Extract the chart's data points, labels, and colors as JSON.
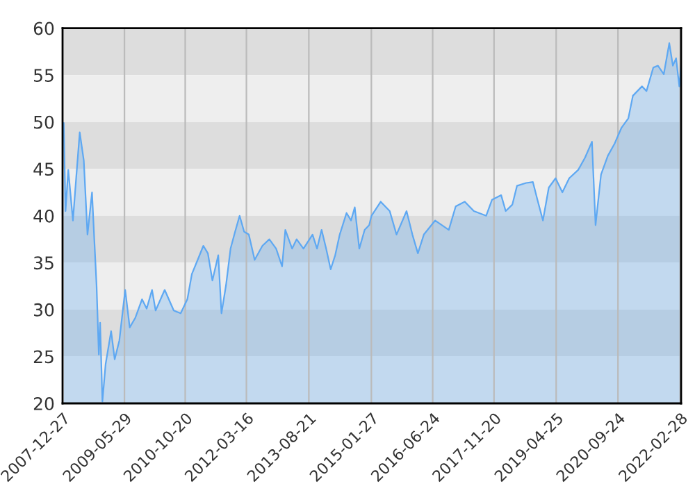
{
  "chart_data": {
    "type": "area",
    "x": [
      "2008-01-06",
      "2008-01-21",
      "2008-02-13",
      "2008-03-23",
      "2008-04-19",
      "2008-05-19",
      "2008-06-22",
      "2008-07-23",
      "2008-08-30",
      "2008-09-18",
      "2008-10-07",
      "2008-10-26",
      "2008-11-06",
      "2008-11-25",
      "2008-12-22",
      "2009-02-06",
      "2009-03-08",
      "2009-04-16",
      "2009-06-04",
      "2009-07-12",
      "2009-08-27",
      "2009-10-23",
      "2009-12-01",
      "2010-01-15",
      "2010-02-14",
      "2010-05-01",
      "2010-07-16",
      "2010-09-12",
      "2010-11-07",
      "2010-12-15",
      "2011-02-11",
      "2011-03-21",
      "2011-04-28",
      "2011-06-05",
      "2011-07-24",
      "2011-08-20",
      "2011-09-27",
      "2011-11-04",
      "2011-12-12",
      "2012-01-19",
      "2012-02-26",
      "2012-04-05",
      "2012-05-24",
      "2012-07-28",
      "2012-09-24",
      "2012-11-20",
      "2013-01-09",
      "2013-02-05",
      "2013-04-03",
      "2013-05-11",
      "2013-07-07",
      "2013-09-21",
      "2013-10-29",
      "2013-12-06",
      "2014-01-13",
      "2014-02-20",
      "2014-03-30",
      "2014-05-07",
      "2014-07-03",
      "2014-08-10",
      "2014-09-10",
      "2014-10-18",
      "2014-12-02",
      "2015-01-09",
      "2015-01-28",
      "2015-04-15",
      "2015-06-30",
      "2015-08-26",
      "2015-11-18",
      "2016-01-06",
      "2016-02-21",
      "2016-04-11",
      "2016-07-15",
      "2016-11-06",
      "2017-01-03",
      "2017-03-20",
      "2017-06-04",
      "2017-09-15",
      "2017-11-03",
      "2018-01-19",
      "2018-02-26",
      "2018-04-23",
      "2018-06-01",
      "2018-08-16",
      "2018-10-12",
      "2018-11-19",
      "2019-01-04",
      "2019-02-22",
      "2019-04-20",
      "2019-06-16",
      "2019-08-12",
      "2019-10-27",
      "2019-12-23",
      "2020-02-19",
      "2020-03-20",
      "2020-05-05",
      "2020-07-01",
      "2020-08-27",
      "2020-10-24",
      "2020-12-20",
      "2021-01-27",
      "2021-04-13",
      "2021-05-21",
      "2021-07-17",
      "2021-08-25",
      "2021-10-13",
      "2021-11-28",
      "2021-12-28",
      "2022-01-24",
      "2022-02-20",
      "2022-03-07"
    ],
    "series": [
      {
        "color": "#5ea8f2",
        "values": [
          49.9,
          40.5,
          44.9,
          39.5,
          44.0,
          48.9,
          45.9,
          38.0,
          42.5,
          37.5,
          32.6,
          25.2,
          28.6,
          20.2,
          24.2,
          27.7,
          24.7,
          26.7,
          32.1,
          28.1,
          29.1,
          31.1,
          30.1,
          32.1,
          29.9,
          32.1,
          29.9,
          29.6,
          31.1,
          33.8,
          35.6,
          36.8,
          36.0,
          33.1,
          35.8,
          29.6,
          32.6,
          36.5,
          38.3,
          40.0,
          38.3,
          38.0,
          35.3,
          36.8,
          37.5,
          36.5,
          34.6,
          38.5,
          36.5,
          37.5,
          36.5,
          38.0,
          36.5,
          38.5,
          36.5,
          34.3,
          35.8,
          38.0,
          40.3,
          39.5,
          40.9,
          36.5,
          38.5,
          39.0,
          40.0,
          41.5,
          40.5,
          38.0,
          40.5,
          38.0,
          36.0,
          38.0,
          39.5,
          38.5,
          41.0,
          41.5,
          40.5,
          40.0,
          41.7,
          42.2,
          40.5,
          41.2,
          43.2,
          43.5,
          43.6,
          41.7,
          39.5,
          43.0,
          44.0,
          42.5,
          44.0,
          44.9,
          46.2,
          47.9,
          39.0,
          44.4,
          46.4,
          47.7,
          49.4,
          50.4,
          52.8,
          53.8,
          53.3,
          55.8,
          56.0,
          55.1,
          58.4,
          56.0,
          56.8,
          53.8,
          56.0
        ]
      }
    ],
    "xlim": [
      "2007-12-27",
      "2022-03-07"
    ],
    "xticks": [
      "2007-12-27",
      "2009-05-29",
      "2010-10-20",
      "2012-03-16",
      "2013-08-21",
      "2015-01-27",
      "2016-06-24",
      "2017-11-20",
      "2019-04-25",
      "2020-09-24",
      "2022-02-28"
    ],
    "ylim": [
      20,
      60
    ],
    "yticks": [
      20,
      25,
      30,
      35,
      40,
      45,
      50,
      55,
      60
    ],
    "grid": "x",
    "bands": [
      {
        "axis": "y",
        "from": 55,
        "to": 60,
        "color": "#dddddd"
      },
      {
        "axis": "y",
        "from": 50,
        "to": 55,
        "color": "#eeeeee"
      },
      {
        "axis": "y",
        "from": 45,
        "to": 50,
        "color": "#dddddd"
      },
      {
        "axis": "y",
        "from": 40,
        "to": 45,
        "color": "#eeeeee"
      },
      {
        "axis": "y",
        "from": 35,
        "to": 40,
        "color": "#dddddd"
      },
      {
        "axis": "y",
        "from": 30,
        "to": 35,
        "color": "#eeeeee"
      },
      {
        "axis": "y",
        "from": 25,
        "to": 30,
        "color": "#dddddd"
      },
      {
        "axis": "y",
        "from": 20,
        "to": 25,
        "color": "#eeeeee"
      }
    ]
  }
}
